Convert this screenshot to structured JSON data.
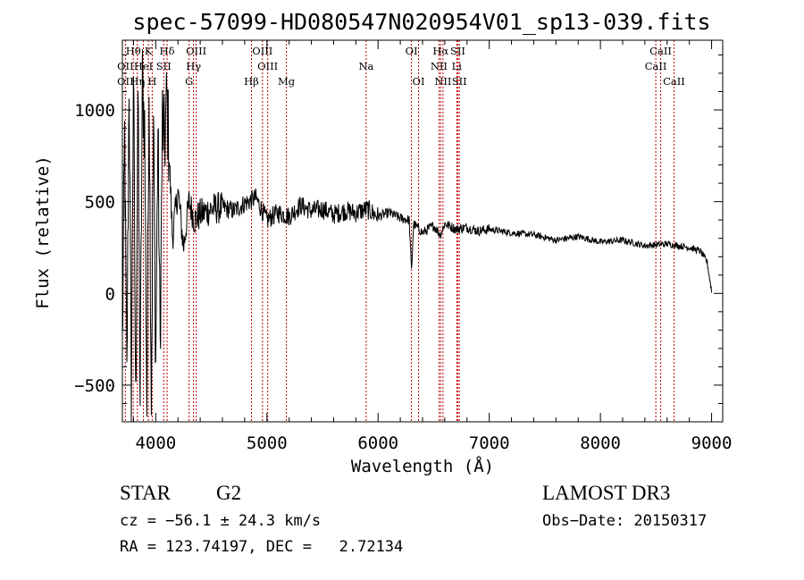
{
  "chart_data": {
    "type": "line",
    "title": "spec-57099-HD080547N020954V01_sp13-039.fits",
    "xlabel": "Wavelength (Å)",
    "ylabel": "Flux (relative)",
    "xlim": [
      3700,
      9100
    ],
    "ylim": [
      -700,
      1380
    ],
    "x_ticks": [
      4000,
      5000,
      6000,
      7000,
      8000,
      9000
    ],
    "y_ticks": [
      -500,
      0,
      500,
      1000
    ],
    "x_tick_labels": [
      "4000",
      "5000",
      "6000",
      "7000",
      "8000",
      "9000"
    ],
    "y_tick_labels": [
      "−500",
      "0",
      "500",
      "1000"
    ],
    "series": [
      {
        "name": "spectrum",
        "x": [
          3700,
          3720,
          3740,
          3760,
          3780,
          3800,
          3820,
          3840,
          3860,
          3880,
          3900,
          3920,
          3940,
          3960,
          3980,
          4000,
          4020,
          4040,
          4060,
          4080,
          4100,
          4150,
          4200,
          4250,
          4300,
          4350,
          4400,
          4500,
          4600,
          4700,
          4800,
          4900,
          5000,
          5100,
          5200,
          5300,
          5400,
          5500,
          5600,
          5700,
          5800,
          5900,
          6000,
          6100,
          6200,
          6280,
          6300,
          6320,
          6400,
          6500,
          6560,
          6600,
          6700,
          6800,
          6900,
          7000,
          7200,
          7400,
          7600,
          7800,
          8000,
          8200,
          8400,
          8600,
          8700,
          8800,
          8900,
          8960,
          9000
        ],
        "y": [
          -300,
          850,
          -500,
          1200,
          -600,
          1250,
          -650,
          1100,
          -580,
          1150,
          900,
          -620,
          1200,
          -550,
          950,
          -400,
          900,
          -300,
          950,
          800,
          1070,
          300,
          560,
          250,
          500,
          400,
          430,
          460,
          470,
          450,
          490,
          520,
          400,
          440,
          420,
          480,
          450,
          460,
          430,
          450,
          440,
          460,
          420,
          440,
          410,
          400,
          120,
          380,
          330,
          370,
          320,
          380,
          350,
          360,
          340,
          350,
          330,
          320,
          290,
          310,
          280,
          290,
          260,
          270,
          260,
          250,
          230,
          170,
          10
        ]
      }
    ],
    "line_labels": [
      {
        "name": "Hθ",
        "x": 3798,
        "row": 0
      },
      {
        "name": "K",
        "x": 3934,
        "row": 0
      },
      {
        "name": "Hδ",
        "x": 4102,
        "row": 0
      },
      {
        "name": "OIII",
        "x": 4364,
        "row": 0
      },
      {
        "name": "OIII",
        "x": 4960,
        "row": 0
      },
      {
        "name": "OI",
        "x": 6300,
        "row": 0
      },
      {
        "name": "Hα",
        "x": 6563,
        "row": 0
      },
      {
        "name": "SII",
        "x": 6717,
        "row": 0
      },
      {
        "name": "CaII",
        "x": 8542,
        "row": 0
      },
      {
        "name": "OII",
        "x": 3727,
        "row": 1
      },
      {
        "name": "HeI",
        "x": 3889,
        "row": 1
      },
      {
        "name": "SII",
        "x": 4072,
        "row": 1
      },
      {
        "name": "Hγ",
        "x": 4340,
        "row": 1
      },
      {
        "name": "OIII",
        "x": 5007,
        "row": 1
      },
      {
        "name": "Na",
        "x": 5893,
        "row": 1
      },
      {
        "name": "NII",
        "x": 6548,
        "row": 1
      },
      {
        "name": "Li",
        "x": 6708,
        "row": 1
      },
      {
        "name": "CaII",
        "x": 8498,
        "row": 1
      },
      {
        "name": "OII",
        "x": 3727,
        "row": 2
      },
      {
        "name": "Hη",
        "x": 3835,
        "row": 2
      },
      {
        "name": "H",
        "x": 3968,
        "row": 2
      },
      {
        "name": "G",
        "x": 4300,
        "row": 2
      },
      {
        "name": "Hβ",
        "x": 4861,
        "row": 2
      },
      {
        "name": "Mg",
        "x": 5175,
        "row": 2
      },
      {
        "name": "OI",
        "x": 6364,
        "row": 2
      },
      {
        "name": "NII",
        "x": 6584,
        "row": 2
      },
      {
        "name": "SII",
        "x": 6731,
        "row": 2
      },
      {
        "name": "CaII",
        "x": 8662,
        "row": 2
      }
    ],
    "line_color": "#000000",
    "marker_color": "#c00000"
  },
  "info": {
    "obj_class": "STAR",
    "subclass": "G2",
    "survey": "LAMOST DR3",
    "cz": "cz = −56.1 ± 24.3 km/s",
    "obs_date": "Obs−Date: 20150317",
    "radec": "RA = 123.74197, DEC =   2.72134"
  }
}
